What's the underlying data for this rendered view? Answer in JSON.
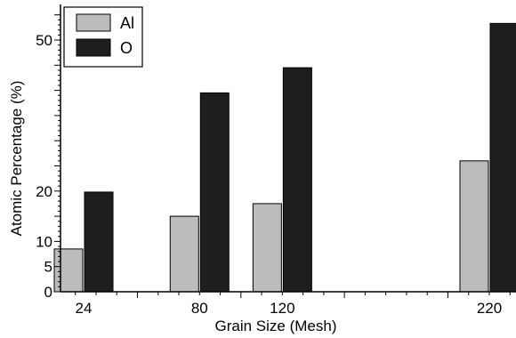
{
  "chart_data": {
    "type": "bar",
    "title": "",
    "xlabel": "Grain Size (Mesh)",
    "ylabel": "Atomic Percentage (%)",
    "x_scale": "linear",
    "x": [
      24,
      80,
      120,
      220
    ],
    "x_tick_labels": [
      "24",
      "80",
      "120",
      "220"
    ],
    "ylim": [
      0,
      55
    ],
    "y_ticks": [
      0,
      5,
      10,
      20,
      50
    ],
    "y_tick_labels": [
      "0",
      "5",
      "10",
      "20",
      "50"
    ],
    "grid": false,
    "legend_position": "top-left",
    "series": [
      {
        "name": "Al",
        "values": [
          8.5,
          15,
          17.5,
          26
        ],
        "color": "#bcbcbc"
      },
      {
        "name": "O",
        "values": [
          19.8,
          39.5,
          44.5,
          53.3
        ],
        "color": "#1e1e1e"
      }
    ]
  }
}
